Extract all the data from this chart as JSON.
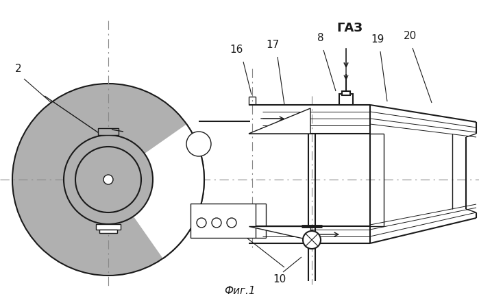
{
  "title": "Фиг.1",
  "gas_label": "ГАЗ",
  "label_2": "2",
  "label_8": "8",
  "label_10": "10",
  "label_16": "16",
  "label_17": "17",
  "label_19": "19",
  "label_20": "20",
  "bg_color": "#ffffff",
  "line_color": "#1a1a1a",
  "gray_fill": "#b0b0b0",
  "fig_width": 6.99,
  "fig_height": 4.45,
  "dpi": 100
}
